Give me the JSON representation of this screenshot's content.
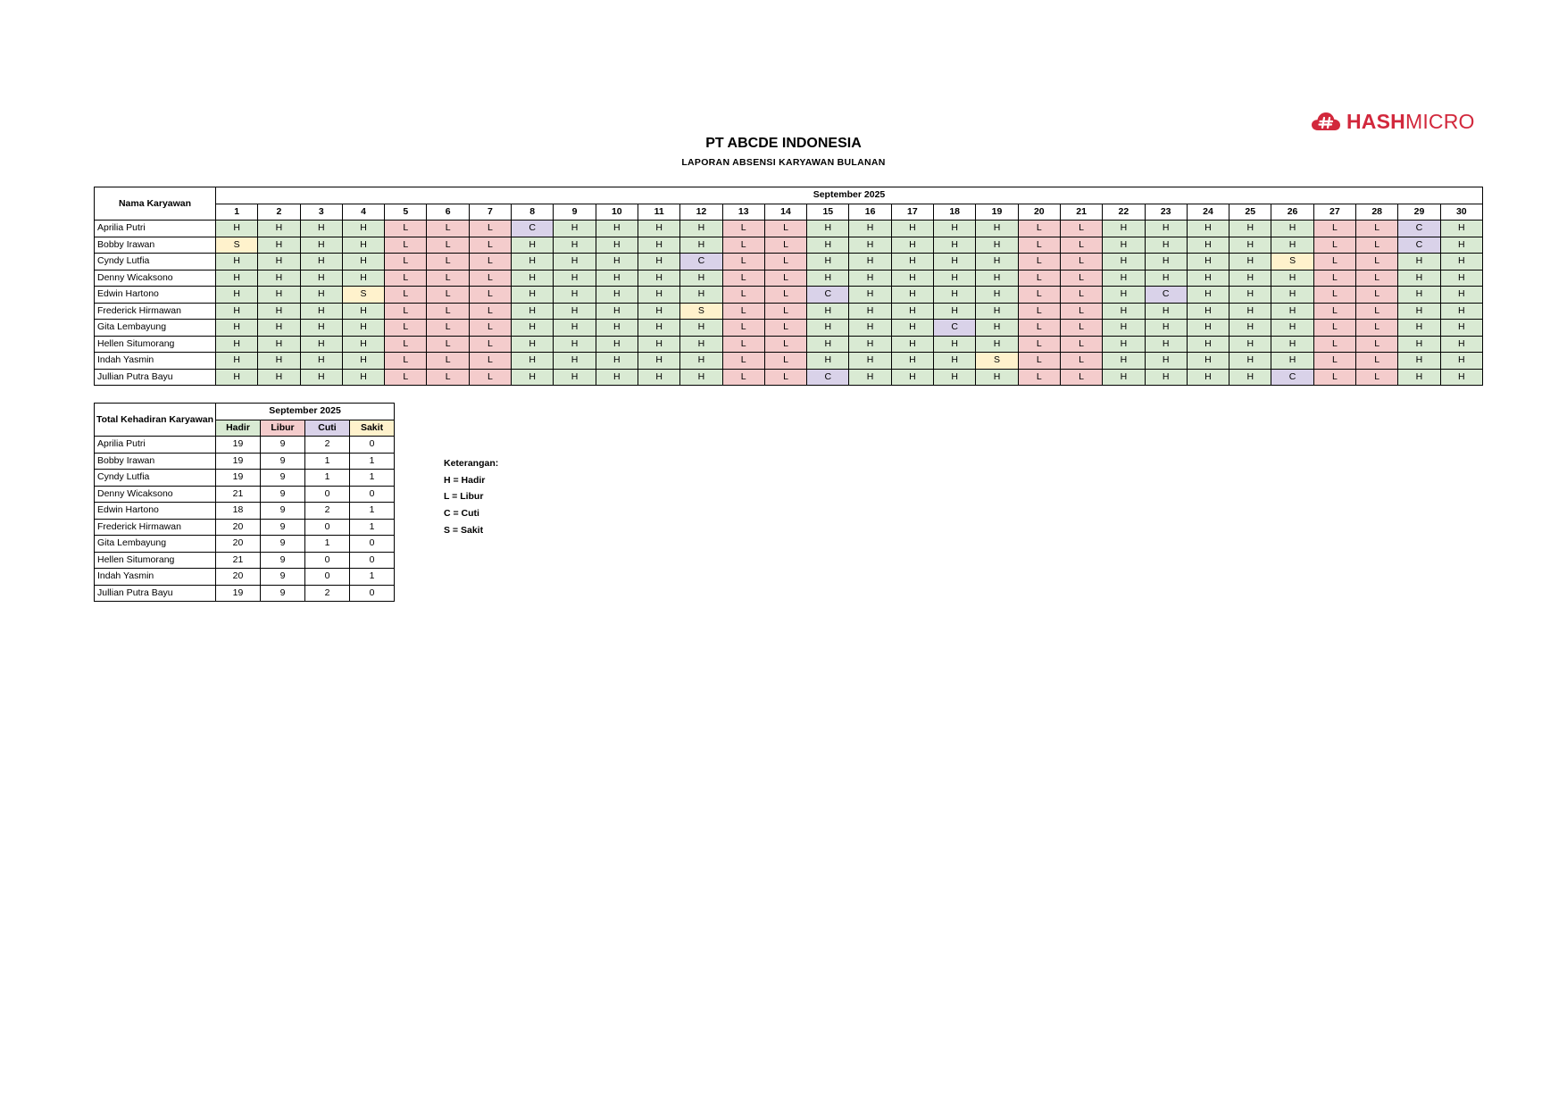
{
  "logo": {
    "text_bold": "HASH",
    "text_light": "MICRO",
    "icon": "hashmicro-cloud-hash-logo",
    "color": "#d2283c"
  },
  "title": "PT ABCDE INDONESIA",
  "subtitle": "LAPORAN ABSENSI KARYAWAN BULANAN",
  "attendance": {
    "name_header": "Nama Karyawan",
    "month_header": "September 2025",
    "days": [
      "1",
      "2",
      "3",
      "4",
      "5",
      "6",
      "7",
      "8",
      "9",
      "10",
      "11",
      "12",
      "13",
      "14",
      "15",
      "16",
      "17",
      "18",
      "19",
      "20",
      "21",
      "22",
      "23",
      "24",
      "25",
      "26",
      "27",
      "28",
      "29",
      "30"
    ],
    "rows": [
      {
        "name": "Aprilia Putri",
        "marks": [
          "H",
          "H",
          "H",
          "H",
          "L",
          "L",
          "L",
          "C",
          "H",
          "H",
          "H",
          "H",
          "L",
          "L",
          "H",
          "H",
          "H",
          "H",
          "H",
          "L",
          "L",
          "H",
          "H",
          "H",
          "H",
          "H",
          "L",
          "L",
          "C",
          "H"
        ]
      },
      {
        "name": "Bobby Irawan",
        "marks": [
          "S",
          "H",
          "H",
          "H",
          "L",
          "L",
          "L",
          "H",
          "H",
          "H",
          "H",
          "H",
          "L",
          "L",
          "H",
          "H",
          "H",
          "H",
          "H",
          "L",
          "L",
          "H",
          "H",
          "H",
          "H",
          "H",
          "L",
          "L",
          "C",
          "H"
        ]
      },
      {
        "name": "Cyndy Lutfia",
        "marks": [
          "H",
          "H",
          "H",
          "H",
          "L",
          "L",
          "L",
          "H",
          "H",
          "H",
          "H",
          "C",
          "L",
          "L",
          "H",
          "H",
          "H",
          "H",
          "H",
          "L",
          "L",
          "H",
          "H",
          "H",
          "H",
          "S",
          "L",
          "L",
          "H",
          "H"
        ]
      },
      {
        "name": "Denny Wicaksono",
        "marks": [
          "H",
          "H",
          "H",
          "H",
          "L",
          "L",
          "L",
          "H",
          "H",
          "H",
          "H",
          "H",
          "L",
          "L",
          "H",
          "H",
          "H",
          "H",
          "H",
          "L",
          "L",
          "H",
          "H",
          "H",
          "H",
          "H",
          "L",
          "L",
          "H",
          "H"
        ]
      },
      {
        "name": "Edwin Hartono",
        "marks": [
          "H",
          "H",
          "H",
          "S",
          "L",
          "L",
          "L",
          "H",
          "H",
          "H",
          "H",
          "H",
          "L",
          "L",
          "C",
          "H",
          "H",
          "H",
          "H",
          "L",
          "L",
          "H",
          "C",
          "H",
          "H",
          "H",
          "L",
          "L",
          "H",
          "H"
        ]
      },
      {
        "name": "Frederick Hirmawan",
        "marks": [
          "H",
          "H",
          "H",
          "H",
          "L",
          "L",
          "L",
          "H",
          "H",
          "H",
          "H",
          "S",
          "L",
          "L",
          "H",
          "H",
          "H",
          "H",
          "H",
          "L",
          "L",
          "H",
          "H",
          "H",
          "H",
          "H",
          "L",
          "L",
          "H",
          "H"
        ]
      },
      {
        "name": "Gita Lembayung",
        "marks": [
          "H",
          "H",
          "H",
          "H",
          "L",
          "L",
          "L",
          "H",
          "H",
          "H",
          "H",
          "H",
          "L",
          "L",
          "H",
          "H",
          "H",
          "C",
          "H",
          "L",
          "L",
          "H",
          "H",
          "H",
          "H",
          "H",
          "L",
          "L",
          "H",
          "H"
        ]
      },
      {
        "name": "Hellen Situmorang",
        "marks": [
          "H",
          "H",
          "H",
          "H",
          "L",
          "L",
          "L",
          "H",
          "H",
          "H",
          "H",
          "H",
          "L",
          "L",
          "H",
          "H",
          "H",
          "H",
          "H",
          "L",
          "L",
          "H",
          "H",
          "H",
          "H",
          "H",
          "L",
          "L",
          "H",
          "H"
        ]
      },
      {
        "name": "Indah Yasmin",
        "marks": [
          "H",
          "H",
          "H",
          "H",
          "L",
          "L",
          "L",
          "H",
          "H",
          "H",
          "H",
          "H",
          "L",
          "L",
          "H",
          "H",
          "H",
          "H",
          "S",
          "L",
          "L",
          "H",
          "H",
          "H",
          "H",
          "H",
          "L",
          "L",
          "H",
          "H"
        ]
      },
      {
        "name": "Jullian Putra Bayu",
        "marks": [
          "H",
          "H",
          "H",
          "H",
          "L",
          "L",
          "L",
          "H",
          "H",
          "H",
          "H",
          "H",
          "L",
          "L",
          "C",
          "H",
          "H",
          "H",
          "H",
          "L",
          "L",
          "H",
          "H",
          "H",
          "H",
          "C",
          "L",
          "L",
          "H",
          "H"
        ]
      }
    ]
  },
  "summary": {
    "name_header": "Total Kehadiran Karyawan",
    "month_header": "September 2025",
    "columns": [
      {
        "label": "Hadir",
        "code": "H"
      },
      {
        "label": "Libur",
        "code": "L"
      },
      {
        "label": "Cuti",
        "code": "C"
      },
      {
        "label": "Sakit",
        "code": "S"
      }
    ],
    "rows": [
      {
        "name": "Aprilia Putri",
        "values": [
          "19",
          "9",
          "2",
          "0"
        ]
      },
      {
        "name": "Bobby Irawan",
        "values": [
          "19",
          "9",
          "1",
          "1"
        ]
      },
      {
        "name": "Cyndy Lutfia",
        "values": [
          "19",
          "9",
          "1",
          "1"
        ]
      },
      {
        "name": "Denny Wicaksono",
        "values": [
          "21",
          "9",
          "0",
          "0"
        ]
      },
      {
        "name": "Edwin Hartono",
        "values": [
          "18",
          "9",
          "2",
          "1"
        ]
      },
      {
        "name": "Frederick Hirmawan",
        "values": [
          "20",
          "9",
          "0",
          "1"
        ]
      },
      {
        "name": "Gita Lembayung",
        "values": [
          "20",
          "9",
          "1",
          "0"
        ]
      },
      {
        "name": "Hellen Situmorang",
        "values": [
          "21",
          "9",
          "0",
          "0"
        ]
      },
      {
        "name": "Indah Yasmin",
        "values": [
          "20",
          "9",
          "0",
          "1"
        ]
      },
      {
        "name": "Jullian Putra Bayu",
        "values": [
          "19",
          "9",
          "2",
          "0"
        ]
      }
    ]
  },
  "legend": {
    "heading": "Keterangan:",
    "items": [
      "H = Hadir",
      "L = Libur",
      "C = Cuti",
      "S = Sakit"
    ]
  },
  "colors": {
    "H": "#d9ead3",
    "L": "#f4cccc",
    "C": "#d9d2e9",
    "S": "#fff2cc"
  }
}
